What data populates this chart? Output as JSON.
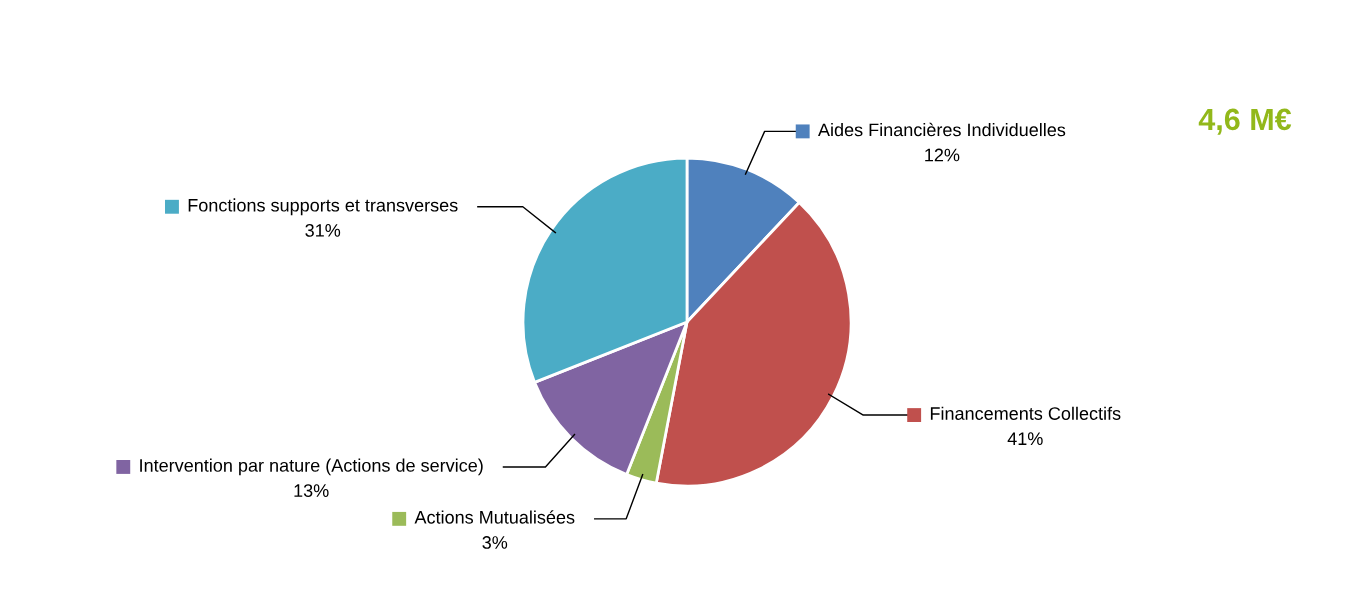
{
  "chart_data": {
    "type": "pie",
    "categories": [
      "Aides Financières Individuelles",
      "Financements Collectifs",
      "Actions Mutualisées",
      "Intervention par nature (Actions de service)",
      "Fonctions supports et transverses"
    ],
    "values": [
      12,
      41,
      3,
      13,
      31
    ],
    "value_labels": [
      "12%",
      "41%",
      "3%",
      "13%",
      "31%"
    ],
    "colors": [
      "#4f81bd",
      "#c0504d",
      "#9bbb59",
      "#8064a2",
      "#4bacc6"
    ],
    "legend": true,
    "annotations": [
      "4,6 M€"
    ]
  }
}
